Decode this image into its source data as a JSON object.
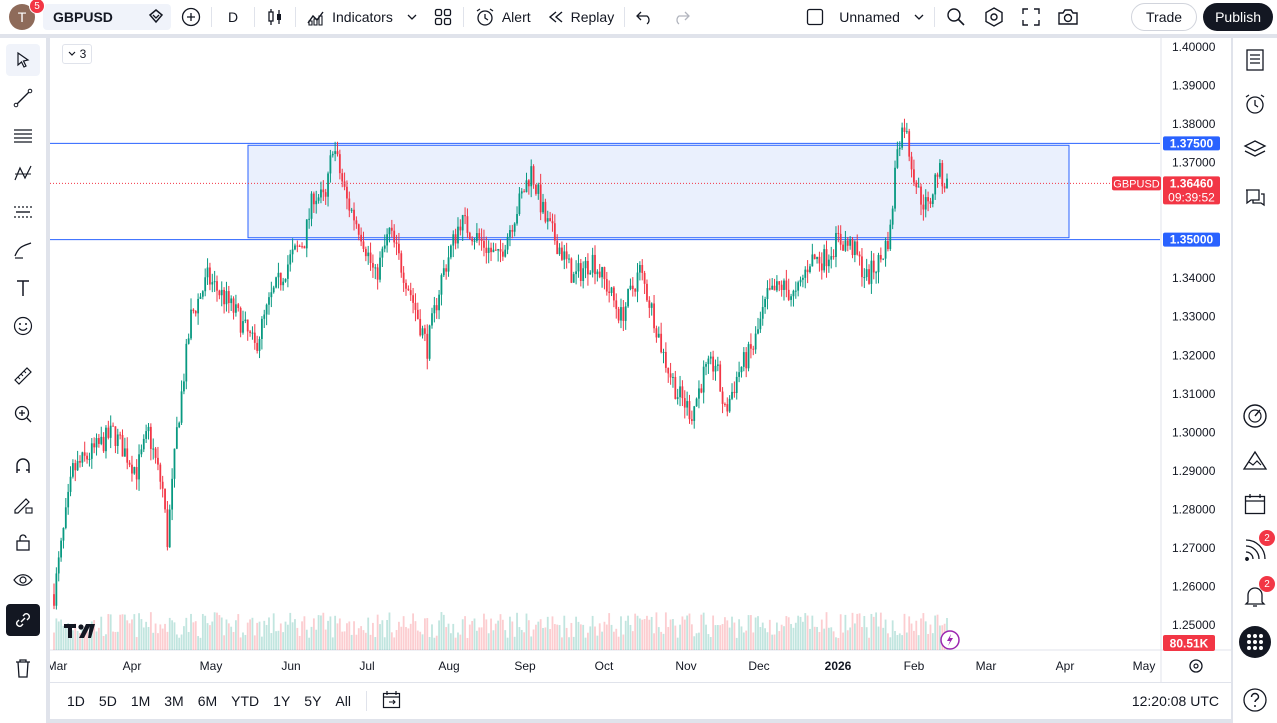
{
  "topbar": {
    "avatar_letter": "T",
    "avatar_badge": "5",
    "symbol": "GBPUSD",
    "interval": "D",
    "indicators_label": "Indicators",
    "alert_label": "Alert",
    "replay_label": "Replay",
    "layout_name": "Unnamed",
    "trade_label": "Trade",
    "publish_label": "Publish"
  },
  "chart": {
    "collapse_count": "3",
    "symbol_label": "GBPUSD",
    "last_price": "1.36460",
    "countdown": "09:39:52",
    "volume_label": "80.51K",
    "level_high": "1.37500",
    "level_low": "1.35000",
    "y_ticks": [
      "1.40000",
      "1.39000",
      "1.38000",
      "1.37000",
      "1.34000",
      "1.33000",
      "1.32000",
      "1.31000",
      "1.30000",
      "1.29000",
      "1.28000",
      "1.27000",
      "1.26000",
      "1.25000"
    ],
    "x_ticks": [
      "Mar",
      "Apr",
      "May",
      "Jun",
      "Jul",
      "Aug",
      "Sep",
      "Oct",
      "Nov",
      "Dec",
      "2026",
      "Feb",
      "Mar",
      "Apr",
      "May"
    ],
    "colors": {
      "up": "#089981",
      "down": "#f23645",
      "level": "#2962ff",
      "zone": "#e6edfd"
    }
  },
  "chart_data": {
    "type": "candlestick",
    "symbol": "GBPUSD",
    "interval": "D",
    "ylim": [
      1.245,
      1.402
    ],
    "x": [
      "2025-03",
      "2025-04",
      "2025-05",
      "2025-06",
      "2025-07",
      "2025-08",
      "2025-09",
      "2025-10",
      "2025-11",
      "2025-12",
      "2026-01",
      "2026-02"
    ],
    "close_approx": [
      1.292,
      1.33,
      1.335,
      1.36,
      1.345,
      1.352,
      1.355,
      1.33,
      1.31,
      1.345,
      1.385,
      1.3646
    ],
    "levels": [
      1.375,
      1.35
    ],
    "last_price": 1.3646,
    "last_volume": "80.51K"
  },
  "bottombar": {
    "ranges": [
      "1D",
      "5D",
      "1M",
      "3M",
      "6M",
      "YTD",
      "1Y",
      "5Y",
      "All"
    ],
    "time": "12:20:08 UTC"
  }
}
